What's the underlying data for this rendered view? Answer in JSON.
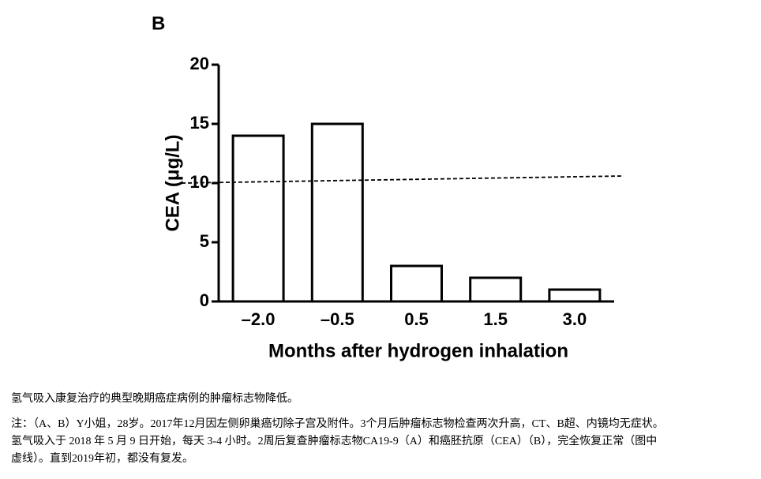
{
  "chart_data": {
    "type": "bar",
    "panel": "B",
    "y_label": "CEA (μg/L)",
    "x_label": "Months after hydrogen inhalation",
    "categories": [
      "–2.0",
      "–0.5",
      "0.5",
      "1.5",
      "3.0"
    ],
    "values": [
      14,
      15,
      3,
      2,
      1
    ],
    "color": "#ffffff",
    "ylim": [
      0,
      20
    ],
    "yticks": [
      0,
      5,
      10,
      15,
      20
    ],
    "grid": false,
    "reference_line": [
      10,
      10.6
    ]
  },
  "caption": {
    "title": "氢气吸入康复治疗的典型晚期癌症病例的肿瘤标志物降低。",
    "note": [
      "注：（A、B）Y小姐，28岁。2017年12月因左侧卵巢癌切除子宫及附件。3个月后肿瘤标志物检查两次升高，CT、B超、内镜均无症状。",
      "氢气吸入于 2018 年 5 月 9 日开始，每天 3-4 小时。2周后复查肿瘤标志物CA19-9（A）和癌胚抗原（CEA）（B），完全恢复正常（图中",
      "虚线）。直到2019年初，都没有复发。"
    ]
  }
}
